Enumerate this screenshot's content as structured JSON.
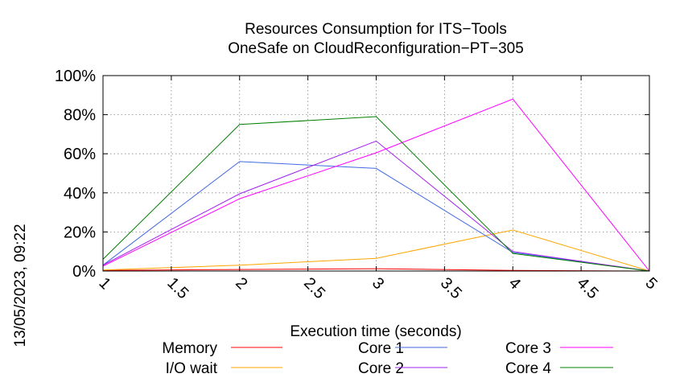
{
  "chart_data": {
    "type": "line",
    "title_line1": "Resources Consumption for ITS−Tools",
    "title_line2": "OneSafe on CloudReconfiguration−PT−305",
    "xlabel": "Execution time (seconds)",
    "ylabel": "",
    "xlim": [
      1,
      5
    ],
    "ylim": [
      0,
      100
    ],
    "x_ticks": [
      {
        "value": 1,
        "label": "1"
      },
      {
        "value": 1.5,
        "label": "1.5"
      },
      {
        "value": 2,
        "label": "2"
      },
      {
        "value": 2.5,
        "label": "2.5"
      },
      {
        "value": 3,
        "label": "3"
      },
      {
        "value": 3.5,
        "label": "3.5"
      },
      {
        "value": 4,
        "label": "4"
      },
      {
        "value": 4.5,
        "label": "4.5"
      },
      {
        "value": 5,
        "label": "5"
      }
    ],
    "y_ticks": [
      {
        "value": 0,
        "label": "0%"
      },
      {
        "value": 20,
        "label": "20%"
      },
      {
        "value": 40,
        "label": "40%"
      },
      {
        "value": 60,
        "label": "60%"
      },
      {
        "value": 80,
        "label": "80%"
      },
      {
        "value": 100,
        "label": "100%"
      }
    ],
    "grid": true,
    "legend_position": "bottom",
    "x": [
      1,
      2,
      3,
      4,
      5
    ],
    "series": [
      {
        "name": "Memory",
        "color": "#ff0000",
        "values": [
          0.3,
          0.8,
          1.2,
          0.3,
          0
        ]
      },
      {
        "name": "I/O wait",
        "color": "#ffa500",
        "values": [
          0.5,
          3,
          6.5,
          21,
          0
        ]
      },
      {
        "name": "Core 1",
        "color": "#4169e1",
        "values": [
          3,
          56,
          52.5,
          9.5,
          0
        ]
      },
      {
        "name": "Core 2",
        "color": "#a020f0",
        "values": [
          3,
          39.5,
          66.5,
          10,
          0
        ]
      },
      {
        "name": "Core 3",
        "color": "#ff00ff",
        "values": [
          2.5,
          37,
          60.5,
          88,
          0
        ]
      },
      {
        "name": "Core 4",
        "color": "#008000",
        "values": [
          6,
          75,
          79,
          9,
          0
        ]
      }
    ]
  },
  "timestamp": "13/05/2023, 09:22"
}
